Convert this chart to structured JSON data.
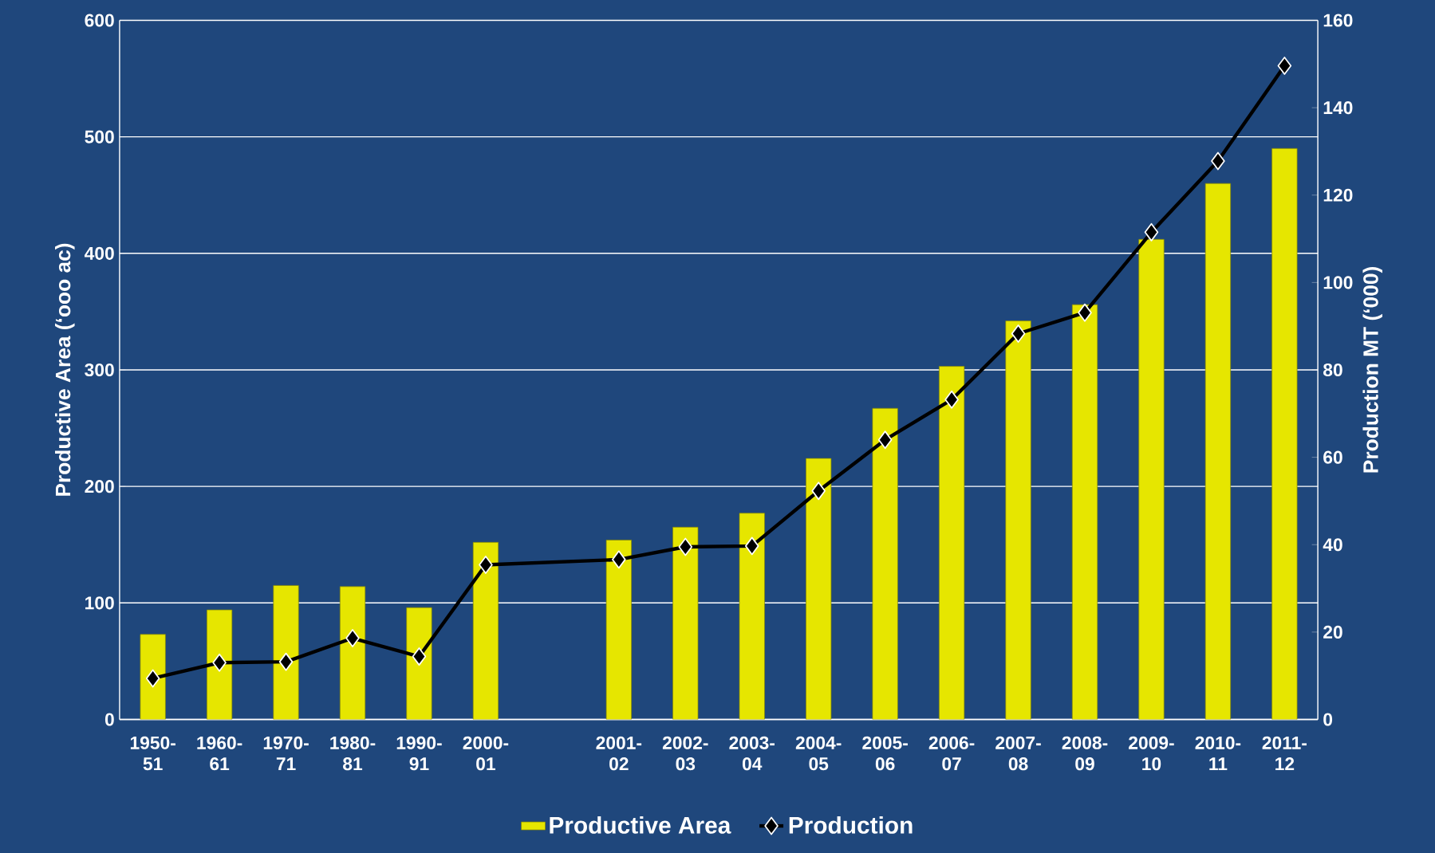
{
  "chart_data": {
    "type": "bar",
    "categories": [
      "1950-51",
      "1960-61",
      "1970-71",
      "1980-81",
      "1990-91",
      "2000-01",
      null,
      "2001-02",
      "2002-03",
      "2003-04",
      "2004-05",
      "2005-06",
      "2006-07",
      "2007-08",
      "2008-09",
      "2009-10",
      "2010-11",
      "2011-12"
    ],
    "series": [
      {
        "name": "Productive Area",
        "color": "#e6e600",
        "values": [
          73,
          94,
          115,
          114,
          96,
          152,
          null,
          154,
          165,
          177,
          224,
          267,
          303,
          342,
          356,
          412,
          460,
          490
        ]
      },
      {
        "name": "Production",
        "type": "line",
        "axis": "y2",
        "color": "#000000",
        "values": [
          9.4,
          13,
          13.2,
          18.6,
          14.4,
          35.4,
          null,
          36.6,
          39.5,
          39.7,
          52.3,
          64,
          73.2,
          88.3,
          93.1,
          111.5,
          127.8,
          149.6
        ]
      }
    ],
    "ylabel": "Productive Area (‘ooo ac)",
    "y2label": "Production MT (‘000)",
    "ylim": [
      0,
      600
    ],
    "yticks": [
      0,
      100,
      200,
      300,
      400,
      500,
      600
    ],
    "y2lim": [
      0,
      160
    ],
    "y2ticks": [
      0,
      20,
      40,
      60,
      80,
      100,
      120,
      140,
      160
    ],
    "grid": "y",
    "legend": "bottom",
    "marker": "diamond"
  }
}
